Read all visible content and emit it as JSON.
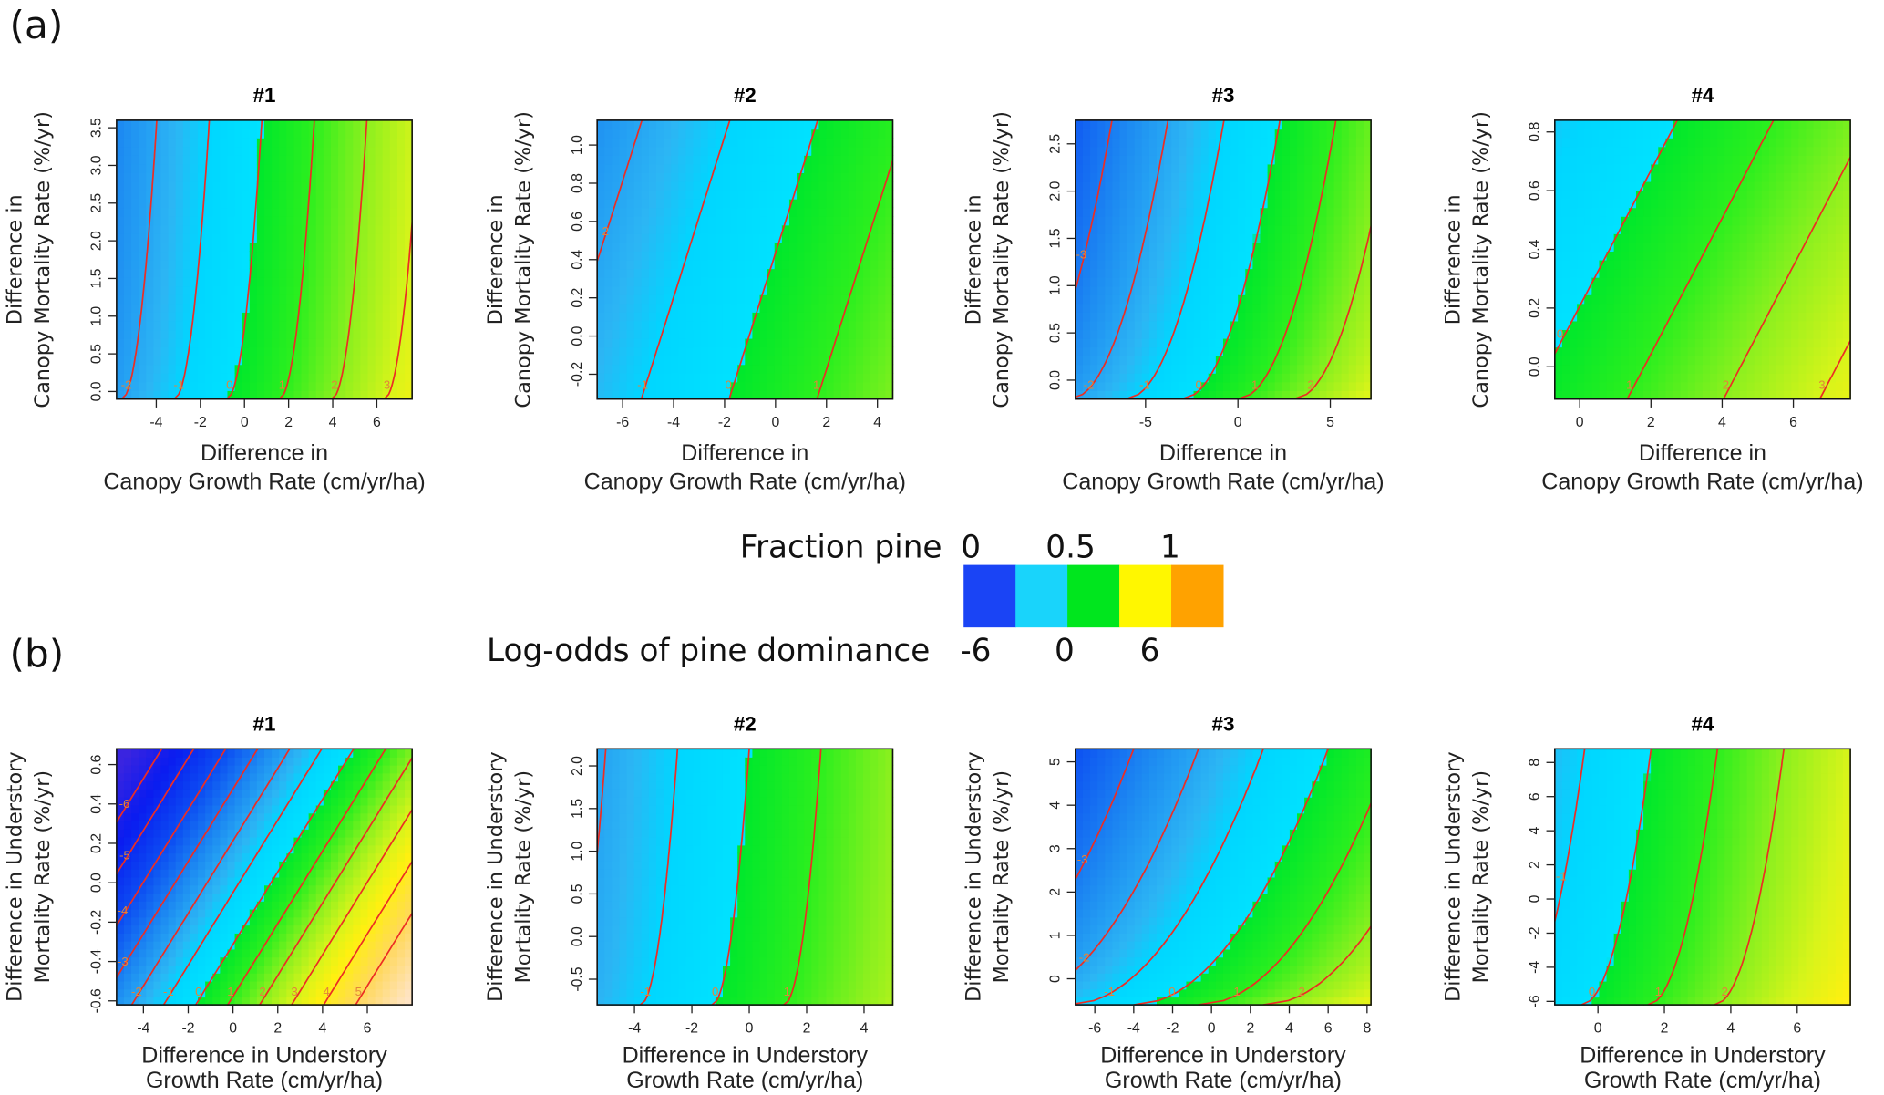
{
  "figure": {
    "panel_a_label": "(a)",
    "panel_b_label": "(b)"
  },
  "legend": {
    "fraction_label": "Fraction pine",
    "fraction_ticks": [
      "0",
      "0.5",
      "1"
    ],
    "logodds_label": "Log-odds of pine dominance",
    "logodds_ticks": [
      "-6",
      "0",
      "6"
    ],
    "swatch_colors": [
      "#1a44f5",
      "#19d4fb",
      "#00e61e",
      "#fff700",
      "#ffa200"
    ]
  },
  "chart_data": [
    {
      "type": "heatmap",
      "row": "a",
      "title": "#1",
      "xlabel_lines": [
        "Difference in",
        "Canopy Growth Rate (cm/yr/ha)"
      ],
      "ylabel_lines": [
        "Difference in",
        "Canopy Mortality Rate (%/yr)"
      ],
      "xlim": [
        -5.8,
        7.6
      ],
      "ylim": [
        -0.1,
        3.6
      ],
      "xticks": [
        -4,
        -2,
        0,
        2,
        4,
        6
      ],
      "xtick_labels": [
        "-4",
        "-2",
        "0",
        "2",
        "4",
        "6"
      ],
      "yticks": [
        0,
        0.5,
        1,
        1.5,
        2,
        2.5,
        3,
        3.5
      ],
      "ytick_labels": [
        "0.0",
        "0.5",
        "1.0",
        "1.5",
        "2.0",
        "2.5",
        "3.0",
        "3.5"
      ],
      "contour_levels": [
        -3,
        -2,
        -1,
        0,
        1,
        2,
        3,
        4
      ],
      "field_model": {
        "gx": 0.42,
        "gy": 0,
        "c": 0.34,
        "s": 0.67
      }
    },
    {
      "type": "heatmap",
      "row": "a",
      "title": "#2",
      "xlabel_lines": [
        "Difference in",
        "Canopy Growth Rate (cm/yr/ha)"
      ],
      "ylabel_lines": [
        "Difference in",
        "Canopy Mortality Rate (%/yr)"
      ],
      "xlim": [
        -7,
        4.6
      ],
      "ylim": [
        -0.33,
        1.13
      ],
      "xticks": [
        -6,
        -4,
        -2,
        0,
        2,
        4
      ],
      "xtick_labels": [
        "-6",
        "-4",
        "-2",
        "0",
        "2",
        "4"
      ],
      "yticks": [
        -0.2,
        0,
        0.2,
        0.4,
        0.6,
        0.8,
        1.0
      ],
      "ytick_labels": [
        "-0.2",
        "0.0",
        "0.2",
        "0.4",
        "0.6",
        "0.8",
        "1.0"
      ],
      "contour_levels": [
        -2,
        -1,
        0,
        1
      ],
      "field_model": {
        "gx": 0.29,
        "gy": -0.69,
        "c": 0.3,
        "s": 0
      }
    },
    {
      "type": "heatmap",
      "row": "a",
      "title": "#3",
      "xlabel_lines": [
        "Difference in",
        "Canopy Growth Rate (cm/yr/ha)"
      ],
      "ylabel_lines": [
        "Difference in",
        "Canopy Mortality Rate (%/yr)"
      ],
      "xlim": [
        -8.8,
        7.2
      ],
      "ylim": [
        -0.2,
        2.75
      ],
      "xticks": [
        -5,
        0,
        5
      ],
      "xtick_labels": [
        "-5",
        "0",
        "5"
      ],
      "yticks": [
        0,
        0.5,
        1,
        1.5,
        2,
        2.5
      ],
      "ytick_labels": [
        "0.0",
        "0.5",
        "1.0",
        "1.5",
        "2.0",
        "2.5"
      ],
      "contour_levels": [
        -4,
        -3,
        -2,
        -1,
        0,
        1,
        2
      ],
      "field_model": {
        "gx": 0.33,
        "gy": 0,
        "c": 1.0,
        "s": 1.75
      }
    },
    {
      "type": "heatmap",
      "row": "a",
      "title": "#4",
      "xlabel_lines": [
        "Difference in",
        "Canopy Growth Rate (cm/yr/ha)"
      ],
      "ylabel_lines": [
        "Difference in",
        "Canopy Mortality Rate (%/yr)"
      ],
      "xlim": [
        -0.7,
        7.6
      ],
      "ylim": [
        -0.11,
        0.84
      ],
      "xticks": [
        0,
        2,
        4,
        6
      ],
      "xtick_labels": [
        "0",
        "2",
        "4",
        "6"
      ],
      "yticks": [
        0,
        0.2,
        0.4,
        0.6,
        0.8
      ],
      "ytick_labels": [
        "0.0",
        "0.2",
        "0.4",
        "0.6",
        "0.8"
      ],
      "contour_levels": [
        0,
        1,
        2,
        3
      ],
      "field_model": {
        "gx": 0.37,
        "gy": -1.6,
        "c": 0.33,
        "s": 0
      }
    },
    {
      "type": "heatmap",
      "row": "b",
      "title": "#1",
      "xlabel_lines": [
        "Difference in Understory",
        "Growth Rate (cm/yr/ha)"
      ],
      "ylabel_lines": [
        "Difference in Understory",
        "Mortality Rate (%/yr)"
      ],
      "xlim": [
        -5.2,
        8
      ],
      "ylim": [
        -0.62,
        0.68
      ],
      "xticks": [
        -4,
        -2,
        0,
        2,
        4,
        6
      ],
      "xtick_labels": [
        "-4",
        "-2",
        "0",
        "2",
        "4",
        "6"
      ],
      "yticks": [
        -0.6,
        -0.4,
        -0.2,
        0,
        0.2,
        0.4,
        0.6
      ],
      "ytick_labels": [
        "-0.6",
        "-0.4",
        "-0.2",
        "0.0",
        "0.2",
        "0.4",
        "0.6"
      ],
      "contour_levels": [
        -6,
        -5,
        -4,
        -3,
        -2,
        -1,
        0,
        1,
        2,
        3,
        4,
        5
      ],
      "field_model": {
        "gx": 0.7,
        "gy": -3.8,
        "c": -1.19,
        "s": 0
      }
    },
    {
      "type": "heatmap",
      "row": "b",
      "title": "#2",
      "xlabel_lines": [
        "Difference in Understory",
        "Growth Rate (cm/yr/ha)"
      ],
      "ylabel_lines": [
        "Difference in Understory",
        "Mortality Rate (%/yr)"
      ],
      "xlim": [
        -5.3,
        5
      ],
      "ylim": [
        -0.8,
        2.2
      ],
      "xticks": [
        -4,
        -2,
        0,
        2,
        4
      ],
      "xtick_labels": [
        "-4",
        "-2",
        "0",
        "2",
        "4"
      ],
      "yticks": [
        -0.5,
        0,
        0.5,
        1,
        1.5,
        2
      ],
      "ytick_labels": [
        "-0.5",
        "0.0",
        "0.5",
        "1.0",
        "1.5",
        "2.0"
      ],
      "contour_levels": [
        -2,
        -1,
        0,
        1
      ],
      "field_model": {
        "gx": 0.4,
        "gy": 0,
        "c": 0.52,
        "s": 0.52
      }
    },
    {
      "type": "heatmap",
      "row": "b",
      "title": "#3",
      "xlabel_lines": [
        "Difference in Understory",
        "Growth Rate (cm/yr/ha)"
      ],
      "ylabel_lines": [
        "Difference in Understory",
        "Mortality Rate (%/yr)"
      ],
      "xlim": [
        -7,
        8.2
      ],
      "ylim": [
        -0.6,
        5.3
      ],
      "xticks": [
        -6,
        -4,
        -2,
        0,
        2,
        4,
        6,
        8
      ],
      "xtick_labels": [
        "-6",
        "-4",
        "-2",
        "0",
        "2",
        "4",
        "6",
        "8"
      ],
      "yticks": [
        0,
        1,
        2,
        3,
        4,
        5
      ],
      "ytick_labels": [
        "0",
        "1",
        "2",
        "3",
        "4",
        "5"
      ],
      "contour_levels": [
        -4,
        -3,
        -2,
        -1,
        0,
        1,
        2
      ],
      "field_model": {
        "gx": 0.3,
        "gy": 0,
        "c": 1.2,
        "s": 3.0
      }
    },
    {
      "type": "heatmap",
      "row": "b",
      "title": "#4",
      "xlabel_lines": [
        "Difference in Understory",
        "Growth Rate (cm/yr/ha)"
      ],
      "ylabel_lines": [
        "Difference in Understory",
        "Mortality Rate (%/yr)"
      ],
      "xlim": [
        -1.3,
        7.6
      ],
      "ylim": [
        -6.2,
        8.8
      ],
      "xticks": [
        0,
        2,
        4,
        6
      ],
      "xtick_labels": [
        "0",
        "2",
        "4",
        "6"
      ],
      "yticks": [
        -6,
        -4,
        -2,
        0,
        2,
        4,
        6,
        8
      ],
      "ytick_labels": [
        "-6",
        "-4",
        "-2",
        "0",
        "2",
        "4",
        "6",
        "8"
      ],
      "contour_levels": [
        -1,
        0,
        1,
        2
      ],
      "field_model": {
        "gx": 0.5,
        "gy": 0,
        "c": 0.25,
        "s": 1.05
      }
    }
  ]
}
